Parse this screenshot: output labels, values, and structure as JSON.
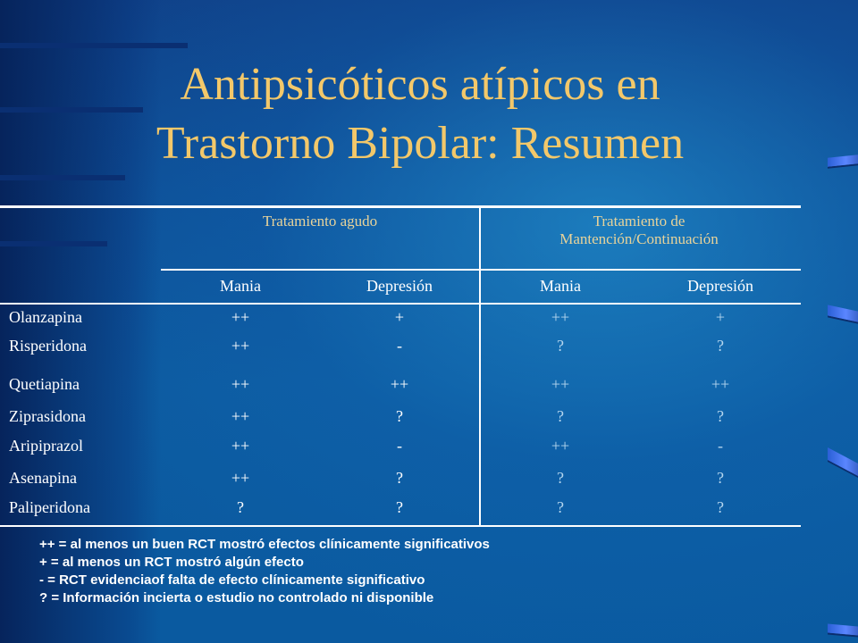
{
  "colors": {
    "title": "#f3c86a",
    "text": "#ffffff",
    "background": "#0c4f96"
  },
  "title": {
    "line1": "Antipsicóticos atípicos en",
    "line2": "Trastorno Bipolar: Resumen"
  },
  "table": {
    "group_headers": [
      "Tratamiento agudo",
      "Tratamiento de Mantención/Continuación"
    ],
    "columns": [
      "Mania",
      "Depresión",
      "Mania",
      "Depresión"
    ],
    "rows": [
      {
        "drug": "Olanzapina",
        "values": [
          "++",
          "+",
          "++",
          "+"
        ]
      },
      {
        "drug": "Risperidona",
        "values": [
          "++",
          "-",
          "?",
          "?"
        ]
      },
      {
        "drug": "Quetiapina",
        "values": [
          "++",
          "++",
          "++",
          "++"
        ]
      },
      {
        "drug": "Ziprasidona",
        "values": [
          "++",
          "?",
          "?",
          "?"
        ]
      },
      {
        "drug": "Aripiprazol",
        "values": [
          "++",
          "-",
          "++",
          "-"
        ]
      },
      {
        "drug": "Asenapina",
        "values": [
          "++",
          "?",
          "?",
          "?"
        ]
      },
      {
        "drug": "Paliperidona",
        "values": [
          "?",
          "?",
          "?",
          "?"
        ]
      }
    ]
  },
  "legend": [
    "++ = al menos un  buen RCT mostró efectos clínicamente significativos",
    "+ = al menos un RCT mostró algún efecto",
    "- = RCT evidenciaof falta de efecto clínicamente significativo",
    "? = Información incierta o estudio no controlado ni disponible"
  ]
}
